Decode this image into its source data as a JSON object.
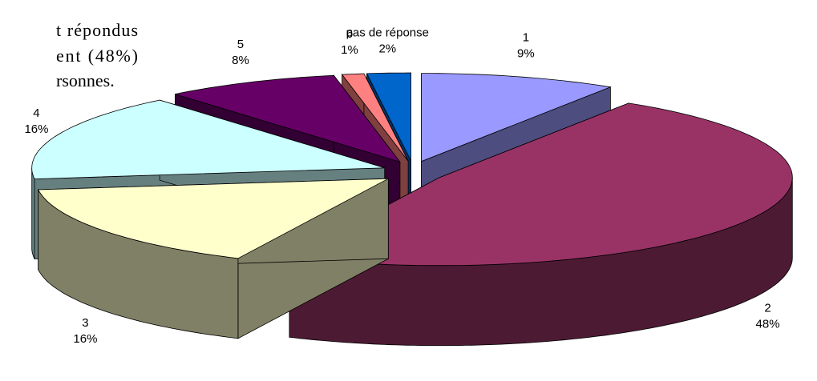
{
  "text": {
    "lines": [
      "t répondus",
      "ent (48%)",
      "rsonnes."
    ]
  },
  "chart_data": {
    "type": "pie3d",
    "categories": [
      "1",
      "2",
      "3",
      "4",
      "5",
      "6",
      "pas de réponse"
    ],
    "values": [
      9,
      48,
      16,
      16,
      8,
      1,
      2
    ],
    "value_labels": [
      "9%",
      "48%",
      "16%",
      "16%",
      "8%",
      "1%",
      "2%"
    ],
    "colors": [
      "#9999ff",
      "#993366",
      "#ffffcc",
      "#ccffff",
      "#660066",
      "#ff8080",
      "#0066cc"
    ]
  }
}
